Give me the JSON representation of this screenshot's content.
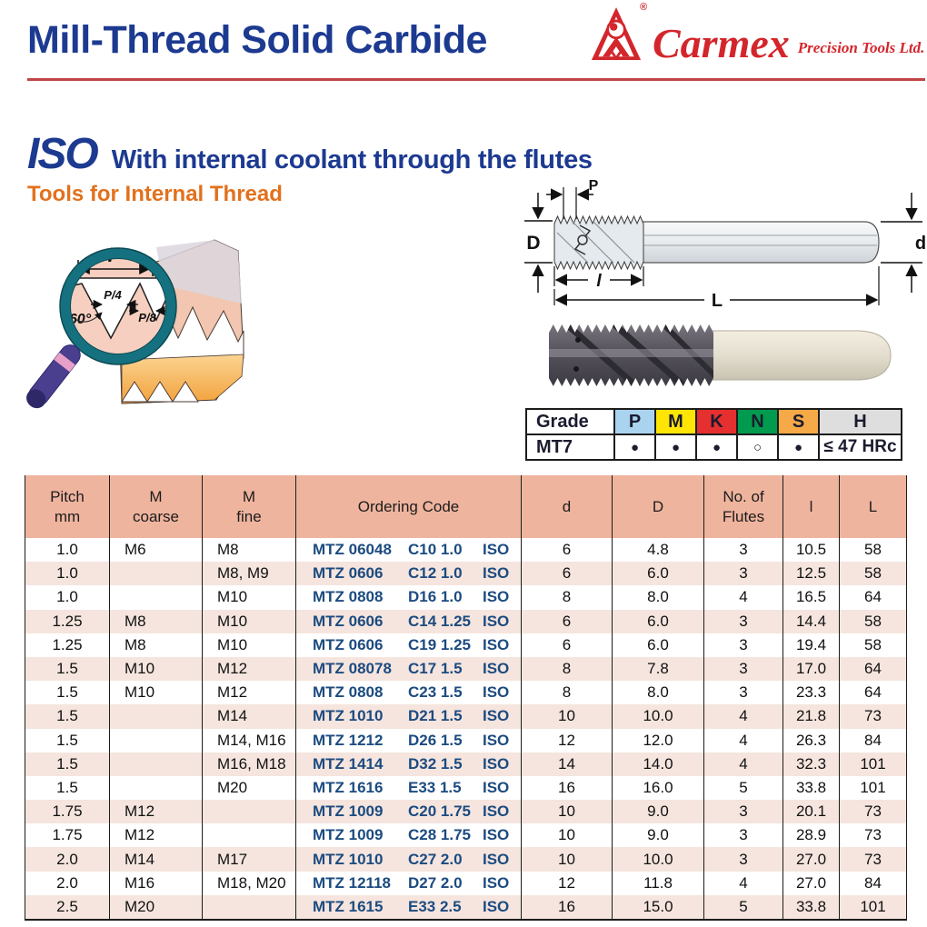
{
  "header": {
    "title": "Mill-Thread Solid Carbide",
    "brand_name": "Carmex",
    "brand_tagline": "Precision Tools Ltd.",
    "registered_mark": "®"
  },
  "intro": {
    "series": "ISO",
    "subtitle": "With internal coolant through the flutes",
    "subheading": "Tools for Internal Thread"
  },
  "profile_diagram": {
    "labels": {
      "pitch": "P",
      "p_quarter": "P/4",
      "p_eighth": "P/8",
      "angle": "60°"
    }
  },
  "tool_drawing": {
    "labels": {
      "pitch": "P",
      "dia": "D",
      "shank_dia": "d",
      "thread_len": "l",
      "overall_len": "L"
    }
  },
  "grade_table": {
    "grade_header": "Grade",
    "columns": [
      {
        "label": "P",
        "color": "#A9D3EF"
      },
      {
        "label": "M",
        "color": "#FFE504"
      },
      {
        "label": "K",
        "color": "#E5302F"
      },
      {
        "label": "N",
        "color": "#019A4E"
      },
      {
        "label": "S",
        "color": "#F6A947"
      },
      {
        "label": "H",
        "color": "#DEDEDE"
      }
    ],
    "mark_glyphs": {
      "filled": "●",
      "open": "○"
    },
    "rows": [
      {
        "grade": "MT7",
        "marks": [
          "filled",
          "filled",
          "filled",
          "open",
          "filled"
        ],
        "hardness": "≤ 47 HRc"
      }
    ]
  },
  "main_table": {
    "headers": [
      "Pitch\nmm",
      "M\ncoarse",
      "M\nfine",
      "Ordering Code",
      "d",
      "D",
      "No. of\nFlutes",
      "l",
      "L"
    ],
    "rows": [
      {
        "pitch": "1.0",
        "m_coarse": "M6",
        "m_fine": "M8",
        "code": [
          "MTZ 06048",
          "C10 1.0",
          "ISO"
        ],
        "d": "6",
        "D": "4.8",
        "flutes": "3",
        "l": "10.5",
        "L": "58"
      },
      {
        "pitch": "1.0",
        "m_coarse": "",
        "m_fine": "M8, M9",
        "code": [
          "MTZ 0606",
          "C12 1.0",
          "ISO"
        ],
        "d": "6",
        "D": "6.0",
        "flutes": "3",
        "l": "12.5",
        "L": "58"
      },
      {
        "pitch": "1.0",
        "m_coarse": "",
        "m_fine": "M10",
        "code": [
          "MTZ 0808",
          "D16 1.0",
          "ISO"
        ],
        "d": "8",
        "D": "8.0",
        "flutes": "4",
        "l": "16.5",
        "L": "64"
      },
      {
        "pitch": "1.25",
        "m_coarse": "M8",
        "m_fine": "M10",
        "code": [
          "MTZ 0606",
          "C14 1.25",
          "ISO"
        ],
        "d": "6",
        "D": "6.0",
        "flutes": "3",
        "l": "14.4",
        "L": "58"
      },
      {
        "pitch": "1.25",
        "m_coarse": "M8",
        "m_fine": "M10",
        "code": [
          "MTZ 0606",
          "C19 1.25",
          "ISO"
        ],
        "d": "6",
        "D": "6.0",
        "flutes": "3",
        "l": "19.4",
        "L": "58"
      },
      {
        "pitch": "1.5",
        "m_coarse": "M10",
        "m_fine": "M12",
        "code": [
          "MTZ 08078",
          "C17 1.5",
          "ISO"
        ],
        "d": "8",
        "D": "7.8",
        "flutes": "3",
        "l": "17.0",
        "L": "64"
      },
      {
        "pitch": "1.5",
        "m_coarse": "M10",
        "m_fine": "M12",
        "code": [
          "MTZ 0808",
          "C23 1.5",
          "ISO"
        ],
        "d": "8",
        "D": "8.0",
        "flutes": "3",
        "l": "23.3",
        "L": "64"
      },
      {
        "pitch": "1.5",
        "m_coarse": "",
        "m_fine": "M14",
        "code": [
          "MTZ 1010",
          "D21 1.5",
          "ISO"
        ],
        "d": "10",
        "D": "10.0",
        "flutes": "4",
        "l": "21.8",
        "L": "73"
      },
      {
        "pitch": "1.5",
        "m_coarse": "",
        "m_fine": "M14, M16",
        "code": [
          "MTZ 1212",
          "D26 1.5",
          "ISO"
        ],
        "d": "12",
        "D": "12.0",
        "flutes": "4",
        "l": "26.3",
        "L": "84"
      },
      {
        "pitch": "1.5",
        "m_coarse": "",
        "m_fine": "M16, M18",
        "code": [
          "MTZ 1414",
          "D32 1.5",
          "ISO"
        ],
        "d": "14",
        "D": "14.0",
        "flutes": "4",
        "l": "32.3",
        "L": "101"
      },
      {
        "pitch": "1.5",
        "m_coarse": "",
        "m_fine": "M20",
        "code": [
          "MTZ 1616",
          "E33 1.5",
          "ISO"
        ],
        "d": "16",
        "D": "16.0",
        "flutes": "5",
        "l": "33.8",
        "L": "101"
      },
      {
        "pitch": "1.75",
        "m_coarse": "M12",
        "m_fine": "",
        "code": [
          "MTZ 1009",
          "C20 1.75",
          "ISO"
        ],
        "d": "10",
        "D": "9.0",
        "flutes": "3",
        "l": "20.1",
        "L": "73"
      },
      {
        "pitch": "1.75",
        "m_coarse": "M12",
        "m_fine": "",
        "code": [
          "MTZ 1009",
          "C28 1.75",
          "ISO"
        ],
        "d": "10",
        "D": "9.0",
        "flutes": "3",
        "l": "28.9",
        "L": "73"
      },
      {
        "pitch": "2.0",
        "m_coarse": "M14",
        "m_fine": "M17",
        "code": [
          "MTZ 1010",
          "C27 2.0",
          "ISO"
        ],
        "d": "10",
        "D": "10.0",
        "flutes": "3",
        "l": "27.0",
        "L": "73"
      },
      {
        "pitch": "2.0",
        "m_coarse": "M16",
        "m_fine": "M18, M20",
        "code": [
          "MTZ 12118",
          "D27 2.0",
          "ISO"
        ],
        "d": "12",
        "D": "11.8",
        "flutes": "4",
        "l": "27.0",
        "L": "84"
      },
      {
        "pitch": "2.5",
        "m_coarse": "M20",
        "m_fine": "",
        "code": [
          "MTZ 1615",
          "E33 2.5",
          "ISO"
        ],
        "d": "16",
        "D": "15.0",
        "flutes": "5",
        "l": "33.8",
        "L": "101"
      }
    ]
  },
  "colors": {
    "title_blue": "#1D3A91",
    "accent_red": "#D3262C",
    "accent_orange": "#E2711D",
    "code_navy": "#1C4B80",
    "table_header_bg": "#EFB49E",
    "row_stripe_bg": "#F5E5DE"
  }
}
